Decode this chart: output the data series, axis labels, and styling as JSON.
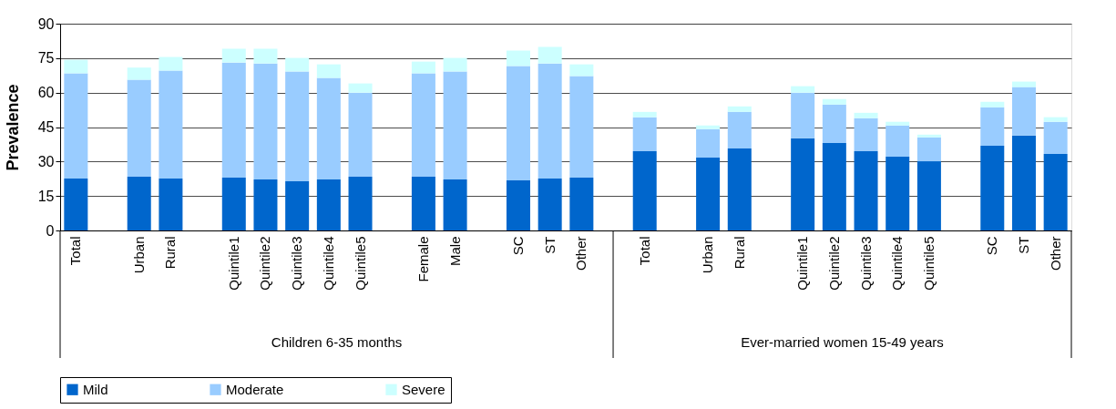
{
  "chart_data": {
    "type": "bar",
    "stacked": true,
    "ylabel": "Prevalence",
    "categories": [
      "Total",
      null,
      "Urban",
      "Rural",
      null,
      "Quintile1",
      "Quintile2",
      "Quintile3",
      "Quintile4",
      "Quintile5",
      null,
      "Female",
      "Male",
      null,
      "SC",
      "ST",
      "Other",
      null,
      "Total",
      null,
      "Urban",
      "Rural",
      null,
      "Quintile1",
      "Quintile2",
      "Quintile3",
      "Quintile4",
      "Quintile5",
      null,
      "SC",
      "ST",
      "Other"
    ],
    "series": [
      {
        "name": "Mild",
        "color": "#0066cc",
        "values": [
          22.6,
          null,
          23.4,
          22.6,
          null,
          23.0,
          22.2,
          21.4,
          22.2,
          23.4,
          null,
          23.4,
          22.2,
          null,
          21.8,
          22.6,
          23.0,
          null,
          34.5,
          null,
          31.7,
          35.7,
          null,
          40.1,
          38.1,
          34.5,
          32.1,
          30.1,
          null,
          36.9,
          41.3,
          33.3
        ]
      },
      {
        "name": "Moderate",
        "color": "#99ccff",
        "values": [
          45.8,
          null,
          42.2,
          47.0,
          null,
          50.1,
          50.5,
          47.8,
          44.2,
          36.6,
          null,
          45.0,
          47.0,
          null,
          49.8,
          50.1,
          44.2,
          null,
          14.8,
          null,
          12.4,
          15.9,
          null,
          19.9,
          16.7,
          14.4,
          13.6,
          10.4,
          null,
          16.7,
          21.1,
          14.0
        ]
      },
      {
        "name": "Severe",
        "color": "#ccffff",
        "values": [
          5.9,
          null,
          5.3,
          5.9,
          null,
          6.0,
          6.4,
          5.9,
          5.9,
          4.0,
          null,
          5.1,
          5.9,
          null,
          6.7,
          7.2,
          5.1,
          null,
          2.3,
          null,
          1.6,
          2.4,
          null,
          2.8,
          2.4,
          2.3,
          1.6,
          1.2,
          null,
          2.4,
          2.4,
          2.0
        ]
      }
    ],
    "ylim": [
      0,
      90
    ],
    "yticks": [
      0,
      15,
      30,
      45,
      60,
      75,
      90
    ],
    "grid": "y",
    "legend": "bottom",
    "annotations": [
      "Children 6-35 months",
      "Ever-married women 15-49 years"
    ]
  }
}
